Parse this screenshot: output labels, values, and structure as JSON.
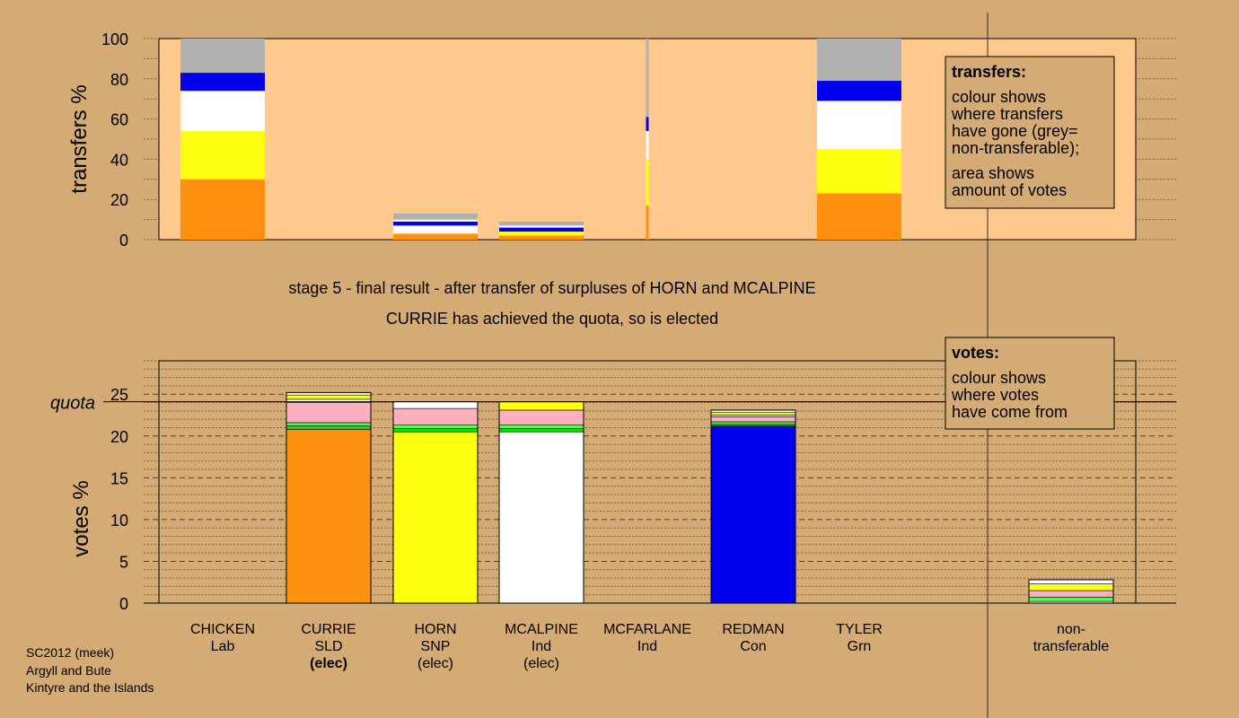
{
  "chart_data": [
    {
      "type": "bar",
      "stacked": true,
      "ylabel": "transfers %",
      "ylim": [
        0,
        100
      ],
      "yticks": [
        0,
        20,
        40,
        60,
        80,
        100
      ],
      "bars": [
        {
          "column": "CHICKEN",
          "segments": [
            {
              "color": "#ff9010",
              "value": 30
            },
            {
              "color": "#ffff10",
              "value": 24
            },
            {
              "color": "#ffffff",
              "value": 20
            },
            {
              "color": "#0000ee",
              "value": 9
            },
            {
              "color": "#b0b0b0",
              "value": 17
            }
          ]
        },
        {
          "column": "HORN",
          "segments": [
            {
              "color": "#ff9010",
              "value": 3
            },
            {
              "color": "#ffffff",
              "value": 4
            },
            {
              "color": "#0000ee",
              "value": 2
            },
            {
              "color": "#ffffff",
              "value": 1
            },
            {
              "color": "#b0b0b0",
              "value": 3
            }
          ]
        },
        {
          "column": "MCALPINE",
          "segments": [
            {
              "color": "#ff9010",
              "value": 2
            },
            {
              "color": "#ffff10",
              "value": 2
            },
            {
              "color": "#0000ee",
              "value": 2
            },
            {
              "color": "#ffffff",
              "value": 1
            },
            {
              "color": "#b0b0b0",
              "value": 2
            }
          ]
        },
        {
          "column": "MCFARLANE",
          "thin": true,
          "segments": [
            {
              "color": "#ff9010",
              "value": 17
            },
            {
              "color": "#ffff10",
              "value": 23
            },
            {
              "color": "#ffffff",
              "value": 14
            },
            {
              "color": "#0000ee",
              "value": 7
            },
            {
              "color": "#b0b0b0",
              "value": 39
            }
          ]
        },
        {
          "column": "TYLER",
          "segments": [
            {
              "color": "#ff9010",
              "value": 23
            },
            {
              "color": "#ffff10",
              "value": 22
            },
            {
              "color": "#ffffff",
              "value": 24
            },
            {
              "color": "#0000ee",
              "value": 10
            },
            {
              "color": "#b0b0b0",
              "value": 21
            }
          ]
        }
      ]
    },
    {
      "type": "bar",
      "stacked": true,
      "ylabel": "votes %",
      "ylim": [
        0,
        29
      ],
      "yticks": [
        0,
        5,
        10,
        15,
        20,
        25
      ],
      "quota": 24.1,
      "quota_label": "quota",
      "bars": [
        {
          "column": "CURRIE",
          "segments": [
            {
              "color": "#ff9010",
              "value": 20.8
            },
            {
              "color": "#10dd10",
              "value": 0.4
            },
            {
              "color": "#50ff50",
              "value": 0.4
            },
            {
              "color": "#ffb0c0",
              "value": 2.4
            },
            {
              "color": "#ffffff",
              "value": 0.4
            },
            {
              "color": "#ffff10",
              "value": 0.5
            },
            {
              "color": "#ffffff",
              "value": 0.3
            }
          ]
        },
        {
          "column": "HORN",
          "segments": [
            {
              "color": "#ffff10",
              "value": 20.5
            },
            {
              "color": "#10dd10",
              "value": 0.4
            },
            {
              "color": "#50ff50",
              "value": 0.4
            },
            {
              "color": "#ffb0c0",
              "value": 2.0
            },
            {
              "color": "#ffffff",
              "value": 0.8
            }
          ]
        },
        {
          "column": "MCALPINE",
          "segments": [
            {
              "color": "#ffffff",
              "value": 20.5
            },
            {
              "color": "#10dd10",
              "value": 0.4
            },
            {
              "color": "#50ff50",
              "value": 0.4
            },
            {
              "color": "#ffb0c0",
              "value": 1.8
            },
            {
              "color": "#ffff10",
              "value": 1.0
            }
          ]
        },
        {
          "column": "REDMAN",
          "segments": [
            {
              "color": "#0000ee",
              "value": 21.2
            },
            {
              "color": "#10dd10",
              "value": 0.2
            },
            {
              "color": "#50ff50",
              "value": 0.3
            },
            {
              "color": "#ffb0c0",
              "value": 0.6
            },
            {
              "color": "#ffffff",
              "value": 0.2
            },
            {
              "color": "#ffff10",
              "value": 0.3
            },
            {
              "color": "#ffffff",
              "value": 0.3
            }
          ]
        },
        {
          "column": "non-transferable",
          "segments": [
            {
              "color": "#ffffff",
              "value": 0.2
            },
            {
              "color": "#50ff50",
              "value": 0.5
            },
            {
              "color": "#ffb0c0",
              "value": 0.8
            },
            {
              "color": "#ffff10",
              "value": 0.8
            },
            {
              "color": "#ffffff",
              "value": 0.5
            }
          ]
        }
      ]
    }
  ],
  "candidates": [
    {
      "id": "CHICKEN",
      "name": "CHICKEN",
      "party": "Lab",
      "status": ""
    },
    {
      "id": "CURRIE",
      "name": "CURRIE",
      "party": "SLD",
      "status": "(elec)",
      "status_bold": true
    },
    {
      "id": "HORN",
      "name": "HORN",
      "party": "SNP",
      "status": "(elec)"
    },
    {
      "id": "MCALPINE",
      "name": "MCALPINE",
      "party": "Ind",
      "status": "(elec)"
    },
    {
      "id": "MCFARLANE",
      "name": "MCFARLANE",
      "party": "Ind",
      "status": ""
    },
    {
      "id": "REDMAN",
      "name": "REDMAN",
      "party": "Con",
      "status": ""
    },
    {
      "id": "TYLER",
      "name": "TYLER",
      "party": "Grn",
      "status": ""
    },
    {
      "id": "non-transferable",
      "name": "non-",
      "party": "transferable",
      "status": ""
    }
  ],
  "stage_text": {
    "line1": "stage 5 - final result - after transfer of surpluses of HORN and MCALPINE",
    "line2": "CURRIE has achieved the quota, so is elected"
  },
  "transfers_box": {
    "title": "transfers:",
    "lines1": [
      "colour shows",
      "where transfers",
      "have gone (grey=",
      "non-transferable);"
    ],
    "lines2": [
      "area shows",
      "amount of votes"
    ]
  },
  "votes_box": {
    "title": "votes:",
    "lines": [
      "colour shows",
      "where votes",
      "have come from"
    ]
  },
  "footer": [
    "SC2012 (meek)",
    "Argyll and Bute",
    "Kintyre and the Islands"
  ],
  "colors": {
    "background": "#d4aa75",
    "plot_area": "#ffc98e",
    "lab": "#ff9010",
    "snp": "#ffff10",
    "ind": "#ffffff",
    "con": "#0000ee",
    "grn_dark": "#10dd10",
    "grn_light": "#50ff50",
    "other": "#ffb0c0",
    "nontransferable": "#b0b0b0"
  }
}
